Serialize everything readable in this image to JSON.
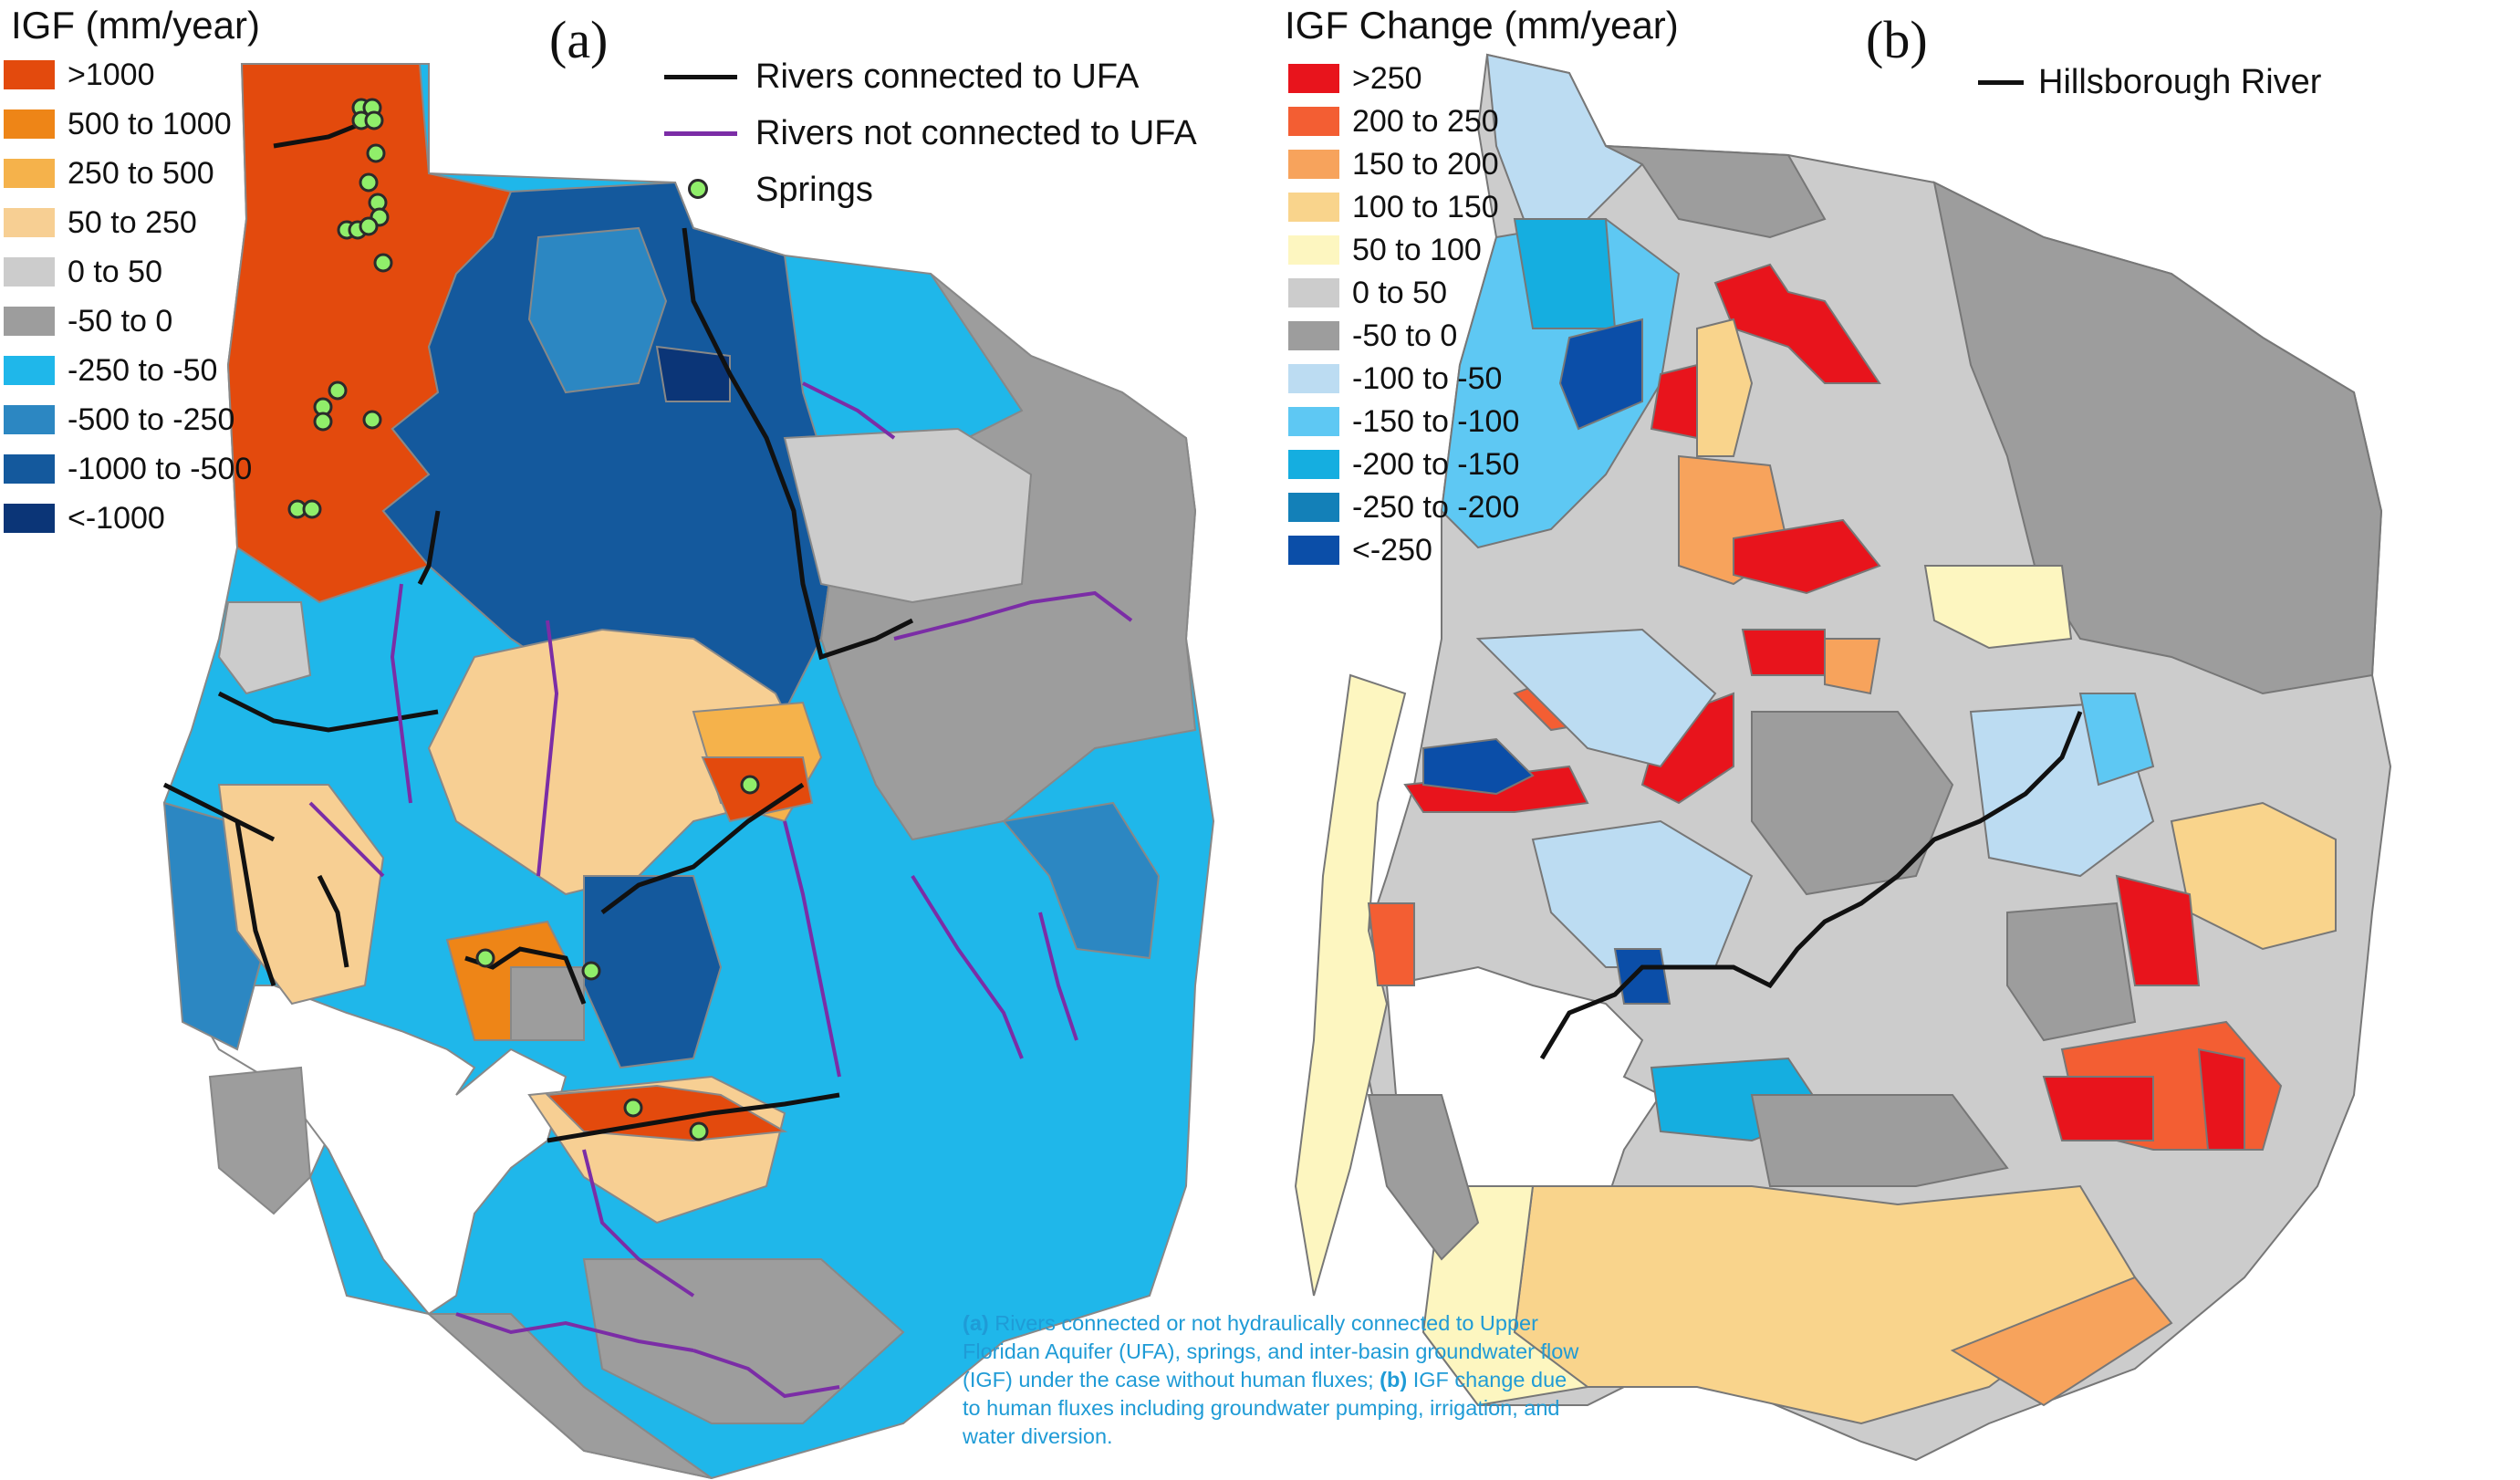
{
  "panel_a": {
    "legend_title": "IGF (mm/year)",
    "panel_label": "(a)",
    "legend": [
      {
        "label": ">1000",
        "color": "#e34a0d"
      },
      {
        "label": "500 to 1000",
        "color": "#ee8517"
      },
      {
        "label": "250 to 500",
        "color": "#f5b24b"
      },
      {
        "label": "50 to 250",
        "color": "#f7cf93"
      },
      {
        "label": "0 to 50",
        "color": "#cccccc"
      },
      {
        "label": "-50 to 0",
        "color": "#9d9d9d"
      },
      {
        "label": "-250 to -50",
        "color": "#1fb7ea"
      },
      {
        "label": "-500 to -250",
        "color": "#2c87c2"
      },
      {
        "label": "-1000 to -500",
        "color": "#14599d"
      },
      {
        "label": "<-1000",
        "color": "#0b3577"
      }
    ],
    "features": [
      {
        "label": "Rivers connected to UFA",
        "color": "#111111",
        "icon": "black-line"
      },
      {
        "label": "Rivers not connected to UFA",
        "color": "#7b2da6",
        "icon": "purple-line"
      },
      {
        "label": "Springs",
        "color": "#90ee6a",
        "icon": "green-dot"
      }
    ]
  },
  "panel_b": {
    "legend_title": "IGF Change (mm/year)",
    "panel_label": "(b)",
    "legend": [
      {
        "label": ">250",
        "color": "#e8141c"
      },
      {
        "label": "200 to 250",
        "color": "#f35e33"
      },
      {
        "label": "150 to 200",
        "color": "#f7a35c"
      },
      {
        "label": "100 to 150",
        "color": "#f9d48c"
      },
      {
        "label": "50 to 100",
        "color": "#fdf6c0"
      },
      {
        "label": "0 to 50",
        "color": "#cccccc"
      },
      {
        "label": "-50 to 0",
        "color": "#9d9d9d"
      },
      {
        "label": "-100 to -50",
        "color": "#bcdcf2"
      },
      {
        "label": "-150 to -100",
        "color": "#5ec8f3"
      },
      {
        "label": "-200 to -150",
        "color": "#15aee0"
      },
      {
        "label": "-250 to -200",
        "color": "#1380b8"
      },
      {
        "label": "<-250",
        "color": "#0b4ea8"
      }
    ],
    "features": [
      {
        "label": "Hillsborough River",
        "color": "#111111",
        "icon": "black-line"
      }
    ]
  },
  "caption": {
    "a_label": "(a)",
    "a_text": " Rivers connected or not hydraulically connected to Upper Floridan Aquifer (UFA), springs, and inter-basin groundwater flow (IGF) under the case without human fluxes; ",
    "b_label": "(b)",
    "b_text": " IGF change due to human fluxes including groundwater pumping, irrigation, and water diversion."
  }
}
